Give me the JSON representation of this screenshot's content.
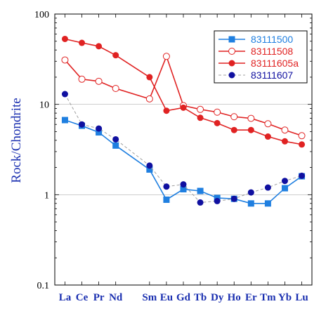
{
  "chart_data": {
    "type": "line",
    "ylabel": "Rock/Chondrite",
    "yscale": "log",
    "ylim": [
      0.1,
      100
    ],
    "y_ticks": [
      "0.1",
      "1",
      "10",
      "100"
    ],
    "grid_y": true,
    "legend_position": "top-right",
    "categories": [
      "La",
      "Ce",
      "Pr",
      "Nd",
      "Sm",
      "Eu",
      "Gd",
      "Tb",
      "Dy",
      "Ho",
      "Er",
      "Tm",
      "Yb",
      "Lu"
    ],
    "category_positions": [
      1,
      2,
      3,
      4,
      6,
      7,
      8,
      9,
      10,
      11,
      12,
      13,
      14,
      15
    ],
    "series": [
      {
        "name": "83111500",
        "color": "#1f7fe0",
        "marker": "square-filled",
        "line": "solid",
        "values": [
          6.7,
          5.8,
          4.9,
          3.5,
          1.9,
          0.88,
          1.15,
          1.1,
          0.92,
          0.9,
          0.8,
          0.8,
          1.18,
          1.6
        ]
      },
      {
        "name": "83111508",
        "color": "#e02222",
        "marker": "circle-open",
        "line": "solid",
        "values": [
          31,
          19,
          18,
          15,
          11.5,
          34,
          9.7,
          8.8,
          8.2,
          7.3,
          7.0,
          6.1,
          5.2,
          4.5
        ]
      },
      {
        "name": "83111605a",
        "color": "#e02222",
        "marker": "circle-filled",
        "line": "solid",
        "values": [
          53,
          48,
          44,
          35,
          20,
          8.5,
          9.2,
          7.1,
          6.2,
          5.2,
          5.2,
          4.4,
          3.9,
          3.6
        ]
      },
      {
        "name": "83111607",
        "color": "#1010a0",
        "marker": "circle-filled",
        "line": "dashed",
        "line_color": "#a0a0a0",
        "values": [
          13,
          6.0,
          5.4,
          4.1,
          2.1,
          1.23,
          1.3,
          0.82,
          0.85,
          0.9,
          1.06,
          1.2,
          1.42,
          1.62
        ]
      }
    ]
  }
}
